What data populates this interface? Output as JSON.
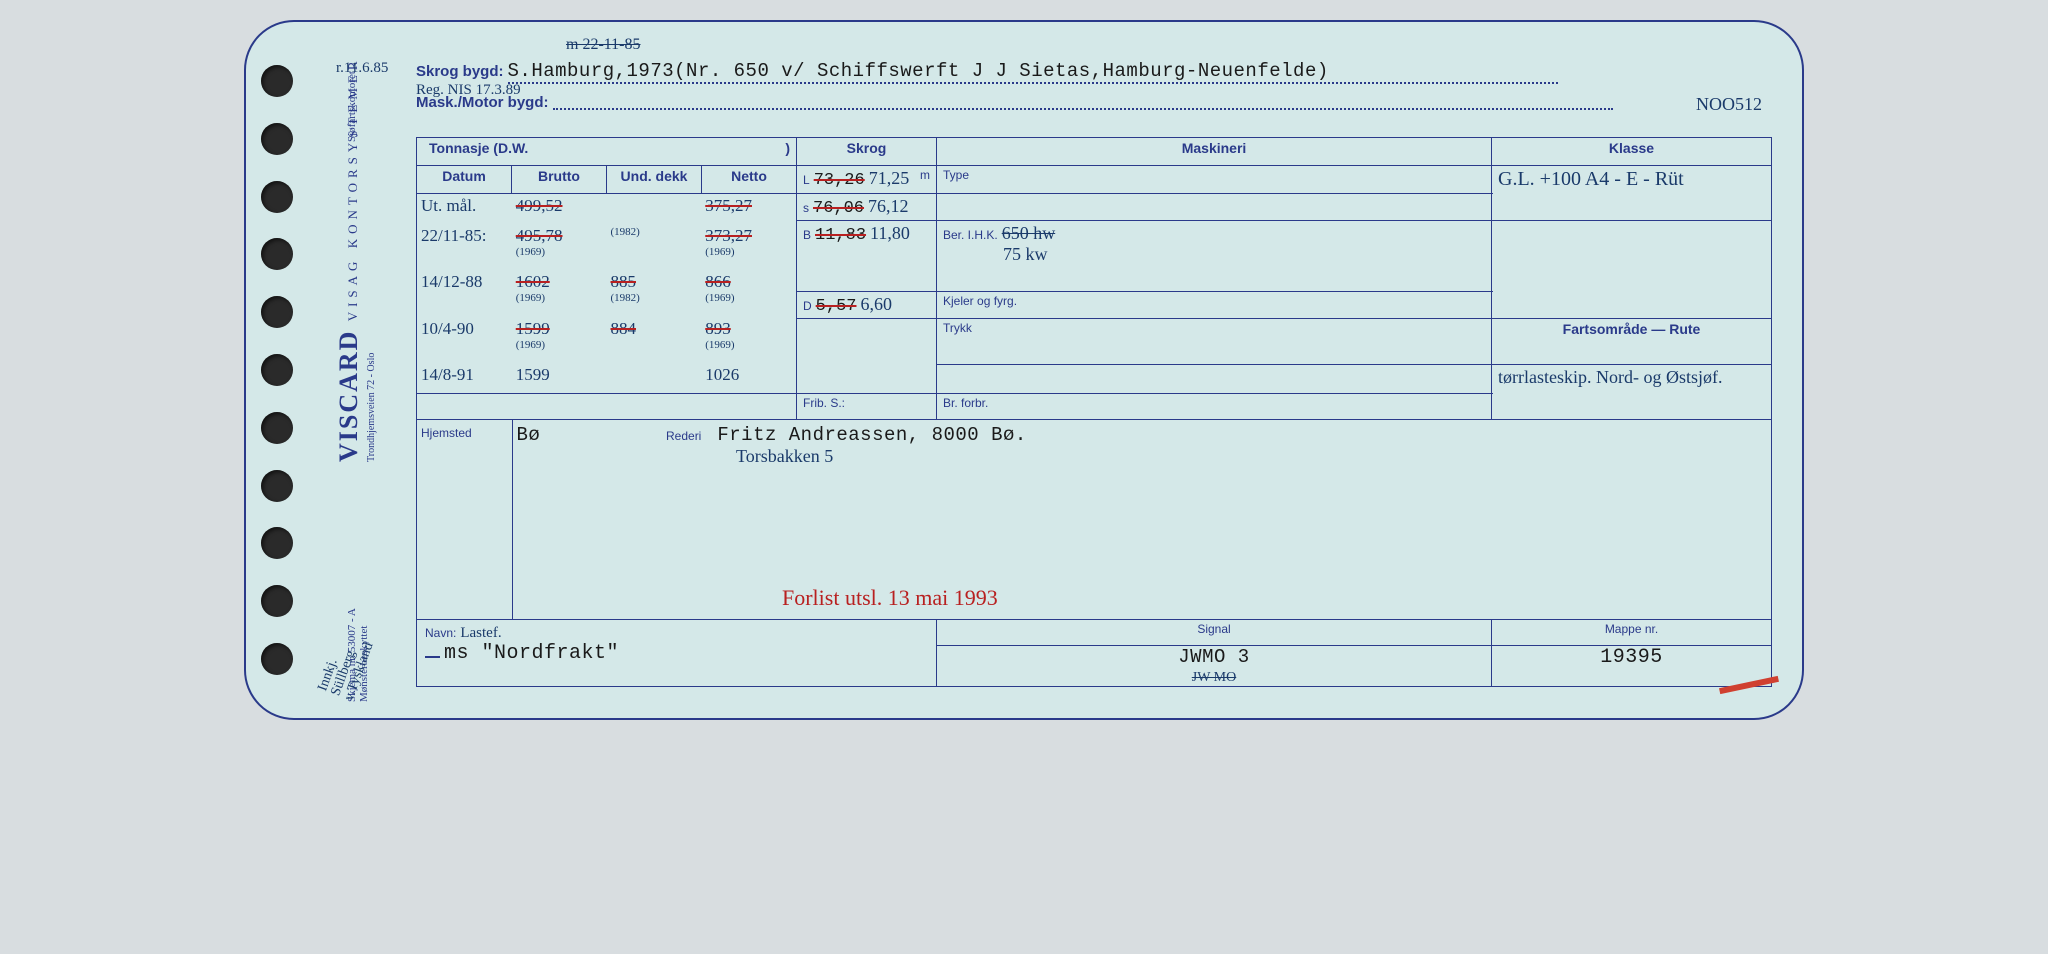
{
  "brand": {
    "name": "VISCARD",
    "sub": "VISAG KONTORSYSTEMER",
    "line2": "Trondhjemsveien 72 - Oslo",
    "skjema": "Skjema nr. 53007 - A",
    "monster": "Mønsterbeskyttet",
    "sjofart": "Sjøfartskontoret"
  },
  "margin": {
    "top_strike": "m 22-11-85",
    "left1": "r.11.6.85",
    "reg": "Reg. NIS 17.3.89",
    "far_left_1": "Innkj.",
    "far_left_2": "Süllberg",
    "far_left_3": "v.Tyskland",
    "right_no": "NOO512"
  },
  "header": {
    "skrog_label": "Skrog bygd:",
    "skrog_val": "S.Hamburg,1973(Nr. 650 v/ Schiffswerft J J Sietas,Hamburg-Neuenfelde)",
    "mask_label": "Mask./Motor bygd:"
  },
  "cols": {
    "tonn": "Tonnasje (D.W.",
    "datum": "Datum",
    "brutto": "Brutto",
    "und": "Und. dekk",
    "netto": "Netto",
    "skrog": "Skrog",
    "mask": "Maskineri",
    "klasse": "Klasse",
    "type": "Type",
    "ber": "Ber. I.H.K.",
    "kjel": "Kjeler og fyrg.",
    "trykk": "Trykk",
    "frib": "Frib. S.:",
    "br": "Br. forbr.",
    "farts": "Fartsområde — Rute",
    "hjem": "Hjemsted",
    "rederi": "Rederi",
    "navn": "Navn:",
    "signal": "Signal",
    "mappe": "Mappe nr."
  },
  "tonn_rows": [
    {
      "d": "Ut. mål.",
      "b": "499,52",
      "b_s": true,
      "u": "",
      "n": "375,27",
      "n_s": true
    },
    {
      "d": "22/11-85:",
      "b": "495,78",
      "b_s": true,
      "bsub": "(1969)",
      "u": "",
      "usub": "(1982)",
      "n": "373,27",
      "n_s": true,
      "nsub": "(1969)"
    },
    {
      "d": "14/12-88",
      "b": "1602",
      "b_s": true,
      "bsub": "(1969)",
      "u": "885",
      "u_s": true,
      "usub": "(1982)",
      "n": "866",
      "n_s": true,
      "nsub": "(1969)"
    },
    {
      "d": "10/4-90",
      "b": "1599",
      "b_s": true,
      "bsub": "(1969)",
      "u": "884",
      "u_s": true,
      "n": "893",
      "n_s": true,
      "nsub": "(1969)"
    },
    {
      "d": "14/8-91",
      "b": "1599",
      "u": "",
      "n": "1026"
    }
  ],
  "skrog_rows": {
    "L": {
      "pre": "L",
      "old": "73,26",
      "new": "71,25",
      "unit": "m"
    },
    "S": {
      "pre": "s",
      "old": "76,06",
      "new": "76,12"
    },
    "B": {
      "pre": "B",
      "old": "11,83",
      "new": "11,80"
    },
    "D": {
      "pre": "D",
      "old": "5,57",
      "new": "6,60"
    }
  },
  "mask": {
    "ber_old": "650 hw",
    "ber_new": "75 kw"
  },
  "klasse": {
    "val": "G.L. +100 A4 - E - Rüt"
  },
  "farts": {
    "val": "tørrlasteskip. Nord- og Østsjøf."
  },
  "hjem": {
    "val": "Bø"
  },
  "rederi": {
    "line1": "Fritz Andreassen, 8000 Bø.",
    "line2": "Torsbakken 5",
    "forlis": "Forlist utsl. 13 mai 1993"
  },
  "bottom": {
    "navn_pre": "Lastef.",
    "navn": "ms \"Nordfrakt\"",
    "signal": "JWMO 3",
    "signal_hand": "JW MO",
    "mappe": "19395"
  },
  "colors": {
    "blue": "#2a3a8a",
    "ink": "#1a3a6a",
    "red": "#b82020",
    "paper": "#d4e8e8",
    "bg": "#d8dde0"
  }
}
